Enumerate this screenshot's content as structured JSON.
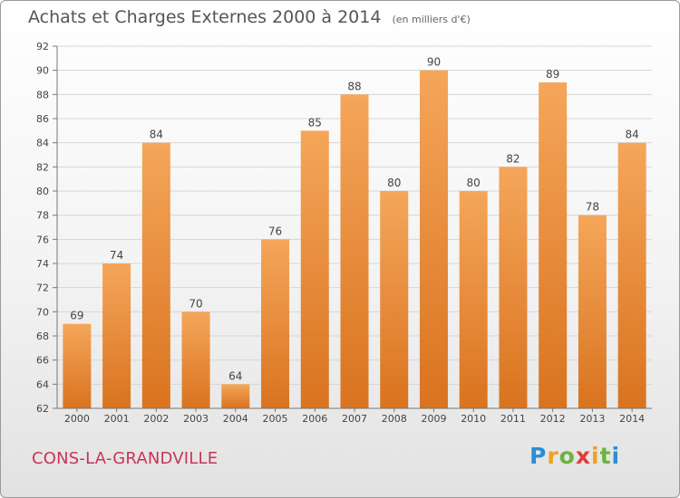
{
  "header": {
    "title": "Achats et Charges Externes 2000 à 2014",
    "unit": "(en milliers d'€)"
  },
  "footer": {
    "commune": "CONS-LA-GRANDVILLE",
    "brand": "Proxiti"
  },
  "colors": {
    "bar_light": "#f5a65a",
    "bar_dark": "#d9731f",
    "commune": "#c8345a"
  },
  "chart_data": {
    "type": "bar",
    "title": "Achats et Charges Externes 2000 à 2014",
    "subtitle": "(en milliers d'€)",
    "xlabel": "",
    "ylabel": "",
    "categories": [
      "2000",
      "2001",
      "2002",
      "2003",
      "2004",
      "2005",
      "2006",
      "2007",
      "2008",
      "2009",
      "2010",
      "2011",
      "2012",
      "2013",
      "2014"
    ],
    "values": [
      69,
      74,
      84,
      70,
      64,
      76,
      85,
      88,
      80,
      90,
      80,
      82,
      89,
      78,
      84
    ],
    "ylim": [
      62,
      92
    ],
    "yticks": [
      62,
      64,
      66,
      68,
      70,
      72,
      74,
      76,
      78,
      80,
      82,
      84,
      86,
      88,
      90,
      92
    ],
    "grid": true,
    "data_labels": true
  }
}
